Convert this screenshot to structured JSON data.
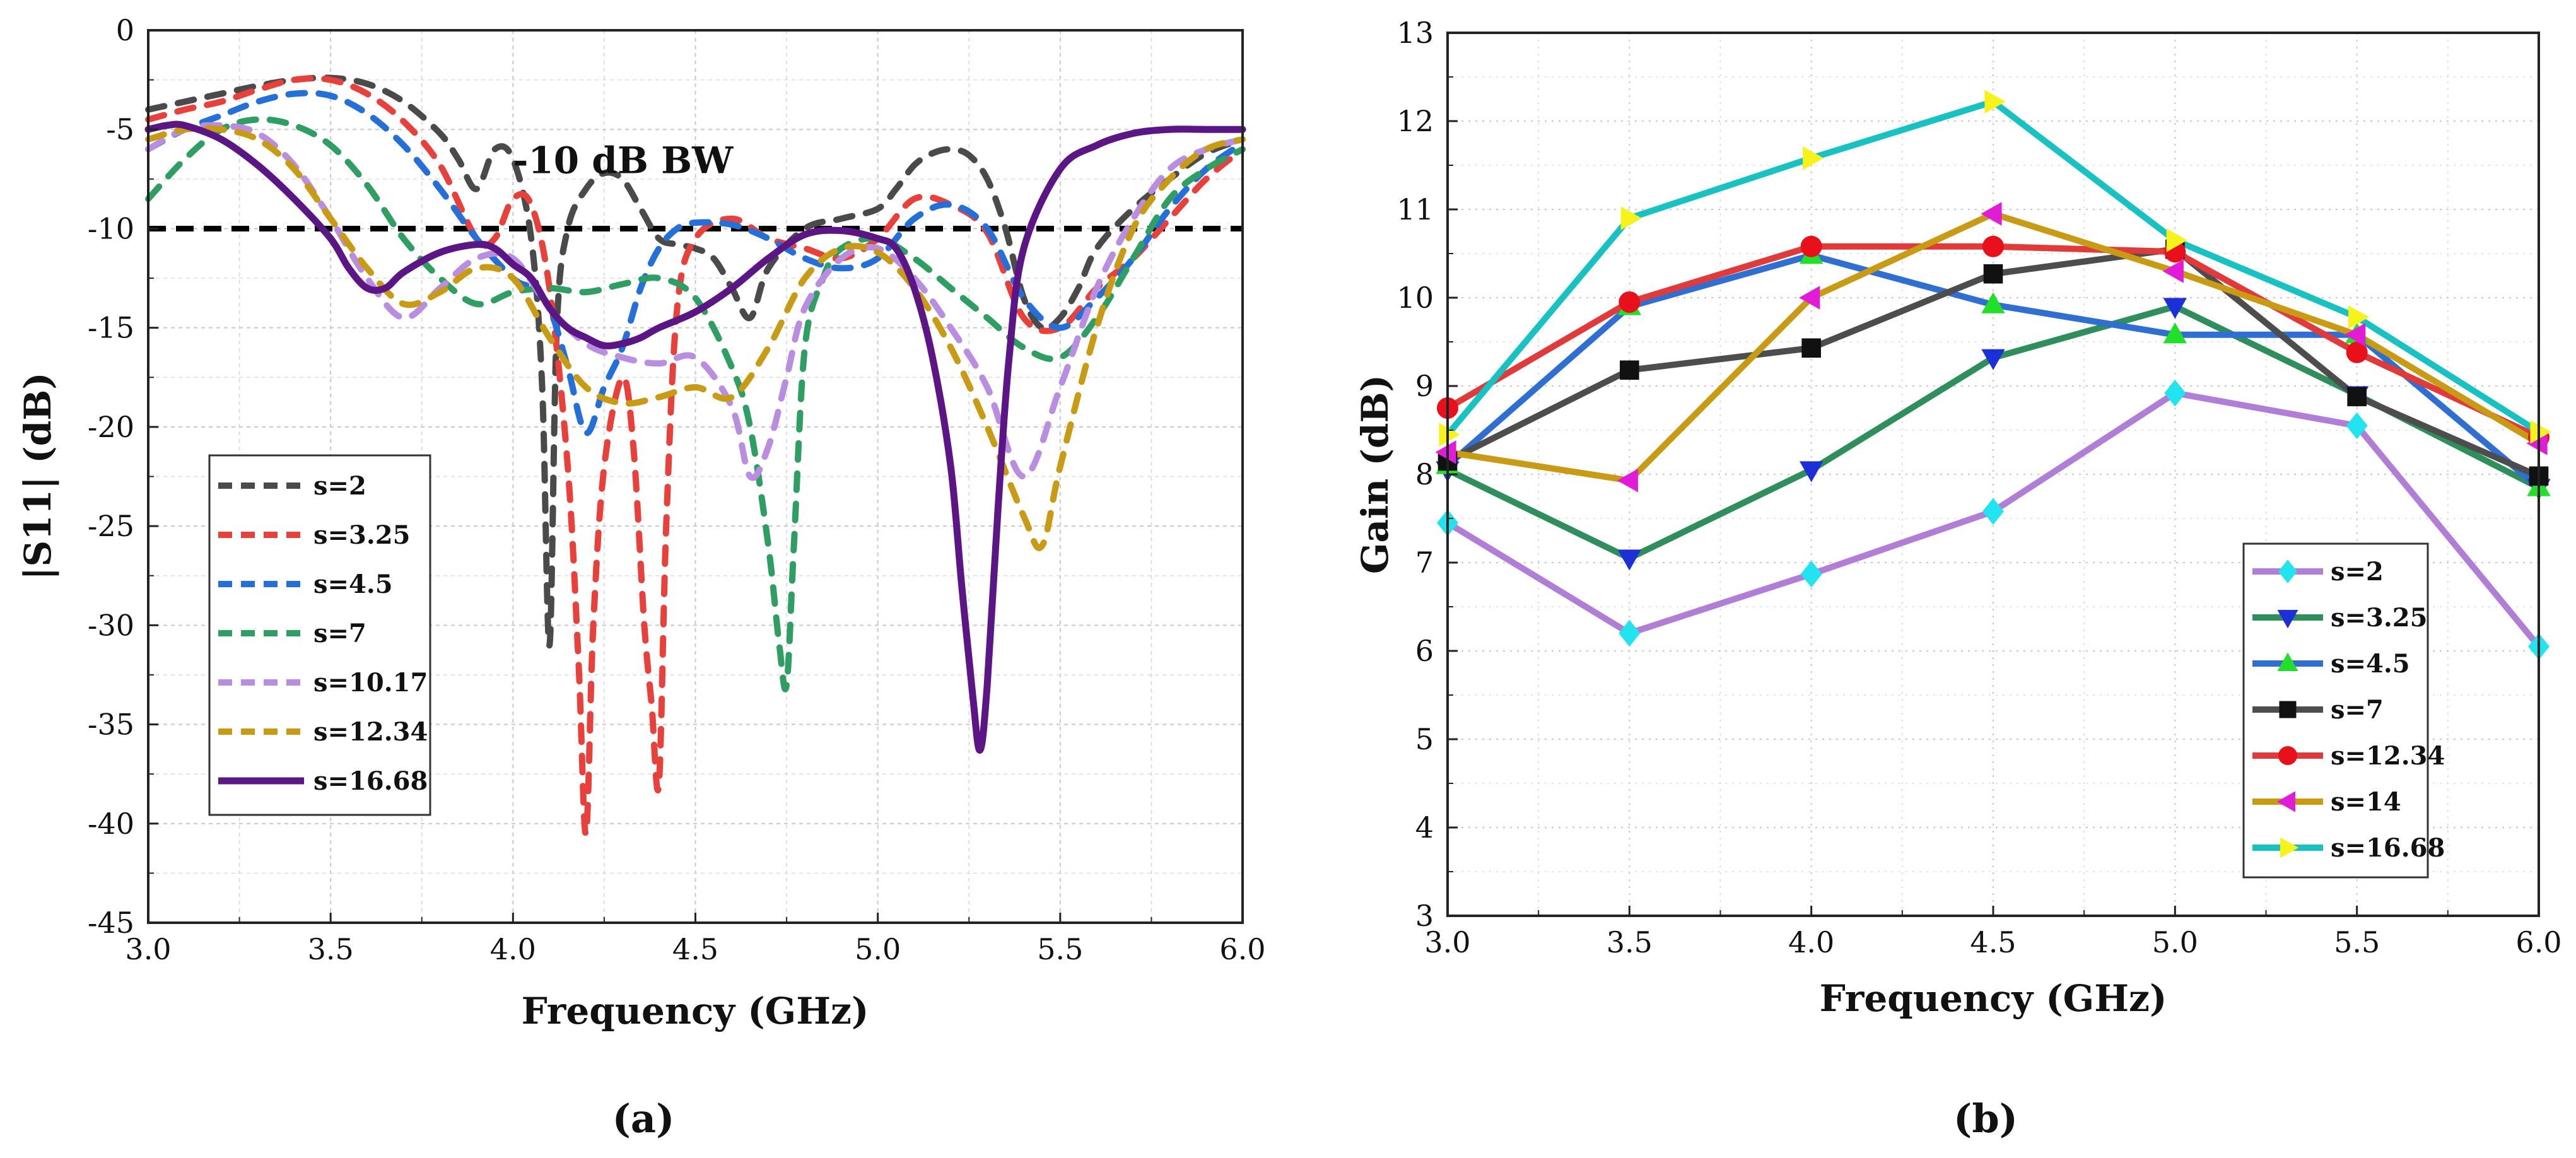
{
  "panel_labels": {
    "a": "(a)",
    "b": "(b)"
  },
  "chart_data": [
    {
      "type": "line",
      "panel": "(a)",
      "xlabel": "Frequency (GHz)",
      "ylabel": "|S11| (dB)",
      "xlim": [
        3.0,
        6.0
      ],
      "ylim": [
        -45,
        0
      ],
      "xticks": [
        3.0,
        3.5,
        4.0,
        4.5,
        5.0,
        5.5,
        6.0
      ],
      "xtick_labels": [
        "3.0",
        "3.5",
        "4.0",
        "4.5",
        "5.0",
        "5.5",
        "6.0"
      ],
      "yticks": [
        0,
        -5,
        -10,
        -15,
        -20,
        -25,
        -30,
        -35,
        -40,
        -45
      ],
      "ytick_labels": [
        "0",
        "-5",
        "-10",
        "-15",
        "-20",
        "-25",
        "-30",
        "-35",
        "-40",
        "-45"
      ],
      "grid": true,
      "legend": "lower-left",
      "annotations": [
        {
          "text": "-10 dB BW",
          "x": 4.0,
          "y": -7.2
        }
      ],
      "reference_line": {
        "y": -10,
        "style": "dashed",
        "color": "#000000"
      },
      "series": [
        {
          "name": "s=2",
          "color": "#4a4a4a",
          "dash": true,
          "x": [
            3.0,
            3.1,
            3.2,
            3.3,
            3.4,
            3.5,
            3.6,
            3.7,
            3.8,
            3.85,
            3.9,
            3.95,
            4.0,
            4.05,
            4.08,
            4.1,
            4.12,
            4.15,
            4.2,
            4.25,
            4.3,
            4.35,
            4.4,
            4.45,
            4.5,
            4.55,
            4.6,
            4.65,
            4.7,
            4.8,
            4.9,
            5.0,
            5.05,
            5.1,
            5.15,
            5.2,
            5.25,
            5.3,
            5.35,
            5.4,
            5.45,
            5.5,
            5.55,
            5.6,
            5.7,
            5.8,
            5.9,
            6.0
          ],
          "y": [
            -4.0,
            -3.6,
            -3.2,
            -2.8,
            -2.5,
            -2.4,
            -2.7,
            -3.6,
            -5.2,
            -6.5,
            -8.0,
            -6.0,
            -6.5,
            -10.5,
            -18.0,
            -31.0,
            -15.0,
            -10.0,
            -8.0,
            -7.2,
            -7.5,
            -9.0,
            -10.5,
            -10.8,
            -11.0,
            -11.5,
            -13.0,
            -14.5,
            -12.0,
            -10.0,
            -9.5,
            -9.0,
            -8.0,
            -6.8,
            -6.2,
            -6.0,
            -6.3,
            -7.5,
            -10.0,
            -13.5,
            -15.0,
            -14.5,
            -13.0,
            -11.0,
            -9.0,
            -7.5,
            -6.2,
            -5.5
          ]
        },
        {
          "name": "s=3.25",
          "color": "#e8413c",
          "dash": true,
          "x": [
            3.0,
            3.1,
            3.2,
            3.3,
            3.4,
            3.5,
            3.6,
            3.7,
            3.8,
            3.9,
            3.95,
            4.0,
            4.05,
            4.1,
            4.15,
            4.18,
            4.2,
            4.22,
            4.25,
            4.3,
            4.33,
            4.36,
            4.38,
            4.4,
            4.42,
            4.45,
            4.5,
            4.6,
            4.7,
            4.8,
            4.9,
            5.0,
            5.1,
            5.2,
            5.3,
            5.4,
            5.5,
            5.6,
            5.7,
            5.8,
            5.9,
            6.0
          ],
          "y": [
            -4.5,
            -4.0,
            -3.6,
            -3.0,
            -2.5,
            -2.5,
            -3.2,
            -4.6,
            -6.8,
            -10.5,
            -10.5,
            -8.5,
            -8.8,
            -13.0,
            -22.0,
            -32.0,
            -40.5,
            -30.0,
            -22.0,
            -17.5,
            -21.0,
            -30.0,
            -34.0,
            -38.0,
            -25.0,
            -14.0,
            -10.5,
            -9.5,
            -10.5,
            -11.0,
            -11.5,
            -10.5,
            -8.5,
            -8.8,
            -10.2,
            -14.5,
            -15.0,
            -13.0,
            -11.5,
            -9.5,
            -7.5,
            -6.0
          ]
        },
        {
          "name": "s=4.5",
          "color": "#2470d8",
          "dash": true,
          "x": [
            3.0,
            3.1,
            3.2,
            3.3,
            3.4,
            3.5,
            3.6,
            3.7,
            3.8,
            3.9,
            4.0,
            4.05,
            4.1,
            4.15,
            4.2,
            4.25,
            4.3,
            4.35,
            4.4,
            4.45,
            4.5,
            4.6,
            4.7,
            4.8,
            4.9,
            5.0,
            5.1,
            5.2,
            5.3,
            5.4,
            5.5,
            5.6,
            5.7,
            5.8,
            5.9,
            6.0
          ],
          "y": [
            -6.0,
            -5.0,
            -4.3,
            -3.6,
            -3.2,
            -3.3,
            -4.2,
            -5.8,
            -8.0,
            -10.5,
            -12.5,
            -13.0,
            -14.0,
            -17.0,
            -20.3,
            -18.0,
            -16.0,
            -13.0,
            -11.0,
            -10.0,
            -9.7,
            -9.8,
            -10.5,
            -11.5,
            -12.0,
            -11.5,
            -9.5,
            -8.8,
            -10.0,
            -13.5,
            -15.0,
            -13.5,
            -11.5,
            -9.0,
            -7.0,
            -5.7
          ]
        },
        {
          "name": "s=7",
          "color": "#2e9e62",
          "dash": true,
          "x": [
            3.0,
            3.1,
            3.2,
            3.3,
            3.4,
            3.5,
            3.6,
            3.7,
            3.8,
            3.9,
            4.0,
            4.1,
            4.2,
            4.3,
            4.4,
            4.5,
            4.6,
            4.65,
            4.7,
            4.73,
            4.75,
            4.77,
            4.8,
            4.85,
            4.9,
            5.0,
            5.1,
            5.2,
            5.3,
            5.4,
            5.5,
            5.6,
            5.7,
            5.8,
            5.9,
            6.0
          ],
          "y": [
            -8.5,
            -6.5,
            -5.0,
            -4.5,
            -4.8,
            -5.8,
            -7.8,
            -10.5,
            -12.5,
            -13.8,
            -13.2,
            -13.0,
            -13.2,
            -12.8,
            -12.5,
            -13.5,
            -17.0,
            -20.0,
            -26.0,
            -31.0,
            -33.0,
            -26.0,
            -16.0,
            -12.5,
            -11.0,
            -10.5,
            -11.5,
            -13.0,
            -14.5,
            -16.0,
            -16.5,
            -14.5,
            -11.5,
            -8.5,
            -7.0,
            -6.0
          ]
        },
        {
          "name": "s=10.17",
          "color": "#b98ee0",
          "dash": true,
          "x": [
            3.0,
            3.1,
            3.2,
            3.3,
            3.4,
            3.5,
            3.6,
            3.7,
            3.8,
            3.9,
            4.0,
            4.1,
            4.2,
            4.3,
            4.4,
            4.5,
            4.6,
            4.65,
            4.7,
            4.75,
            4.8,
            4.9,
            5.0,
            5.1,
            5.2,
            5.3,
            5.4,
            5.5,
            5.6,
            5.7,
            5.8,
            5.9,
            6.0
          ],
          "y": [
            -6.0,
            -5.0,
            -4.8,
            -5.2,
            -6.8,
            -9.5,
            -12.5,
            -14.5,
            -13.0,
            -11.5,
            -11.5,
            -14.0,
            -15.8,
            -16.5,
            -16.8,
            -16.5,
            -19.0,
            -22.5,
            -21.0,
            -17.5,
            -14.0,
            -11.5,
            -11.0,
            -12.5,
            -15.0,
            -18.0,
            -22.5,
            -18.0,
            -13.0,
            -9.5,
            -7.0,
            -6.0,
            -5.5
          ]
        },
        {
          "name": "s=12.34",
          "color": "#c99a14",
          "dash": true,
          "x": [
            3.0,
            3.1,
            3.2,
            3.3,
            3.4,
            3.5,
            3.6,
            3.7,
            3.8,
            3.9,
            4.0,
            4.1,
            4.2,
            4.3,
            4.4,
            4.5,
            4.6,
            4.7,
            4.8,
            4.9,
            5.0,
            5.1,
            5.2,
            5.3,
            5.4,
            5.45,
            5.5,
            5.6,
            5.7,
            5.8,
            5.9,
            6.0
          ],
          "y": [
            -5.5,
            -5.0,
            -5.0,
            -5.5,
            -7.0,
            -9.5,
            -12.0,
            -13.8,
            -13.2,
            -12.0,
            -12.5,
            -15.5,
            -18.0,
            -18.8,
            -18.5,
            -18.0,
            -18.5,
            -16.0,
            -12.5,
            -11.0,
            -11.2,
            -13.0,
            -16.0,
            -20.0,
            -24.5,
            -26.0,
            -22.0,
            -15.0,
            -10.0,
            -7.5,
            -6.0,
            -5.5
          ]
        },
        {
          "name": "s=16.68",
          "color": "#5b1585",
          "dash": false,
          "x": [
            3.0,
            3.05,
            3.1,
            3.2,
            3.3,
            3.4,
            3.5,
            3.55,
            3.6,
            3.65,
            3.7,
            3.8,
            3.9,
            3.95,
            4.0,
            4.05,
            4.1,
            4.15,
            4.2,
            4.25,
            4.3,
            4.35,
            4.4,
            4.5,
            4.6,
            4.7,
            4.8,
            4.9,
            5.0,
            5.05,
            5.1,
            5.15,
            5.2,
            5.23,
            5.26,
            5.28,
            5.3,
            5.33,
            5.36,
            5.4,
            5.5,
            5.6,
            5.7,
            5.8,
            5.9,
            6.0
          ],
          "y": [
            -5.0,
            -4.8,
            -4.8,
            -5.5,
            -6.8,
            -8.5,
            -10.5,
            -12.0,
            -13.0,
            -13.0,
            -12.2,
            -11.2,
            -10.8,
            -11.0,
            -11.8,
            -12.5,
            -14.0,
            -15.0,
            -15.5,
            -15.9,
            -15.8,
            -15.5,
            -15.0,
            -14.2,
            -13.0,
            -11.5,
            -10.3,
            -10.1,
            -10.5,
            -11.0,
            -13.0,
            -16.5,
            -22.0,
            -28.0,
            -33.5,
            -36.3,
            -33.0,
            -24.0,
            -16.5,
            -11.0,
            -7.0,
            -5.8,
            -5.2,
            -5.0,
            -5.0,
            -5.0
          ]
        }
      ]
    },
    {
      "type": "line",
      "panel": "(b)",
      "xlabel": "Frequency (GHz)",
      "ylabel": "Gain (dB)",
      "xlim": [
        3.0,
        6.0
      ],
      "ylim": [
        3,
        13
      ],
      "xticks": [
        3.0,
        3.5,
        4.0,
        4.5,
        5.0,
        5.5,
        6.0
      ],
      "xtick_labels": [
        "3.0",
        "3.5",
        "4.0",
        "4.5",
        "5.0",
        "5.5",
        "6.0"
      ],
      "yticks": [
        3,
        4,
        5,
        6,
        7,
        8,
        9,
        10,
        11,
        12,
        13
      ],
      "ytick_labels": [
        "3",
        "4",
        "5",
        "6",
        "7",
        "8",
        "9",
        "10",
        "11",
        "12",
        "13"
      ],
      "grid": true,
      "legend": "lower-right",
      "series": [
        {
          "name": "s=2",
          "color": "#b07ed6",
          "marker": "diamond",
          "marker_color": "#22e3f0",
          "x": [
            3.0,
            3.5,
            4.0,
            4.5,
            5.0,
            5.5,
            6.0
          ],
          "y": [
            7.45,
            6.2,
            6.87,
            7.58,
            8.92,
            8.55,
            6.05
          ]
        },
        {
          "name": "s=3.25",
          "color": "#2f8f5c",
          "marker": "triangle-down",
          "marker_color": "#1c2fd8",
          "x": [
            3.0,
            3.5,
            4.0,
            4.5,
            5.0,
            5.5,
            6.0
          ],
          "y": [
            8.05,
            7.05,
            8.05,
            9.32,
            9.9,
            8.9,
            7.85
          ]
        },
        {
          "name": "s=4.5",
          "color": "#2e6fd1",
          "marker": "triangle-up",
          "marker_color": "#22e02a",
          "x": [
            3.0,
            3.5,
            4.0,
            4.5,
            5.0,
            5.5,
            6.0
          ],
          "y": [
            8.1,
            9.9,
            10.48,
            9.92,
            9.58,
            9.58,
            7.85
          ]
        },
        {
          "name": "s=7",
          "color": "#4d4d4d",
          "marker": "square",
          "marker_color": "#111111",
          "x": [
            3.0,
            3.5,
            4.0,
            4.5,
            5.0,
            5.5,
            6.0
          ],
          "y": [
            8.15,
            9.18,
            9.43,
            10.27,
            10.55,
            8.88,
            7.98
          ]
        },
        {
          "name": "s=12.34",
          "color": "#e03a3a",
          "marker": "circle",
          "marker_color": "#e8101a",
          "x": [
            3.0,
            3.5,
            4.0,
            4.5,
            5.0,
            5.5,
            6.0
          ],
          "y": [
            8.75,
            9.95,
            10.58,
            10.58,
            10.52,
            9.38,
            8.42
          ]
        },
        {
          "name": "s=14",
          "color": "#c99a14",
          "marker": "triangle-left",
          "marker_color": "#e11cd6",
          "x": [
            3.0,
            3.5,
            4.0,
            4.5,
            5.0,
            5.5,
            6.0
          ],
          "y": [
            8.25,
            7.93,
            10.0,
            10.95,
            10.3,
            9.58,
            8.35
          ]
        },
        {
          "name": "s=16.68",
          "color": "#19c2c2",
          "marker": "triangle-right",
          "marker_color": "#f6f21a",
          "x": [
            3.0,
            3.5,
            4.0,
            4.5,
            5.0,
            5.5,
            6.0
          ],
          "y": [
            8.45,
            10.9,
            11.58,
            12.22,
            10.65,
            9.78,
            8.48
          ]
        }
      ]
    }
  ]
}
